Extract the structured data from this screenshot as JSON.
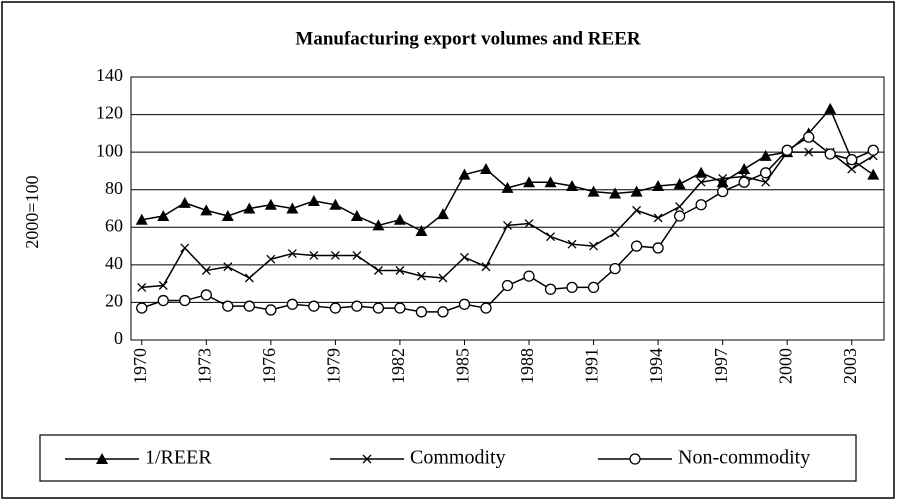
{
  "chart_data": {
    "type": "line",
    "title": "Manufacturing export volumes and REER",
    "y_label": "2000=100",
    "x": [
      1970,
      1971,
      1972,
      1973,
      1974,
      1975,
      1976,
      1977,
      1978,
      1979,
      1980,
      1981,
      1982,
      1983,
      1984,
      1985,
      1986,
      1987,
      1988,
      1989,
      1990,
      1991,
      1992,
      1993,
      1994,
      1995,
      1996,
      1997,
      1998,
      1999,
      2000,
      2001,
      2002,
      2003,
      2004
    ],
    "xlim": [
      1969.5,
      2004.5
    ],
    "xticks": [
      1970,
      1973,
      1976,
      1979,
      1982,
      1985,
      1988,
      1991,
      1994,
      1997,
      2000,
      2003
    ],
    "ylim": [
      0,
      140
    ],
    "yticks": [
      0,
      20,
      40,
      60,
      80,
      100,
      120,
      140
    ],
    "grid": true,
    "legend": "bottom",
    "series": [
      {
        "name": "1/REER",
        "color": "#000000",
        "marker": "triangle",
        "values": [
          64,
          66,
          73,
          69,
          66,
          70,
          72,
          70,
          74,
          72,
          66,
          61,
          64,
          58,
          67,
          88,
          91,
          81,
          84,
          84,
          82,
          79,
          78,
          79,
          82,
          83,
          89,
          84,
          91,
          98,
          100,
          110,
          123,
          96,
          88
        ]
      },
      {
        "name": "Commodity",
        "color": "#000000",
        "marker": "x",
        "values": [
          28,
          29,
          49,
          37,
          39,
          33,
          43,
          46,
          45,
          45,
          45,
          37,
          37,
          34,
          33,
          44,
          39,
          61,
          62,
          55,
          51,
          50,
          57,
          69,
          65,
          71,
          84,
          86,
          87,
          84,
          100,
          100,
          100,
          91,
          98
        ]
      },
      {
        "name": "Non-commodity",
        "color": "#000000",
        "marker": "circle",
        "values": [
          17,
          21,
          21,
          24,
          18,
          18,
          16,
          19,
          18,
          17,
          18,
          17,
          17,
          15,
          15,
          19,
          17,
          29,
          34,
          27,
          28,
          28,
          38,
          50,
          49,
          66,
          72,
          79,
          84,
          89,
          101,
          108,
          99,
          96,
          101
        ]
      }
    ]
  }
}
